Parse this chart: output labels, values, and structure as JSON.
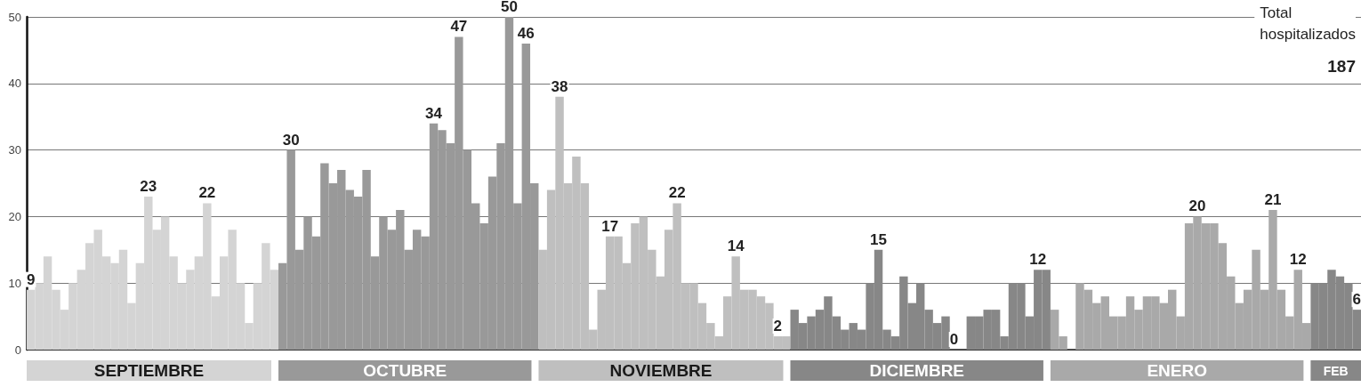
{
  "chart_data": {
    "type": "bar",
    "categories": [
      null,
      null,
      null,
      null,
      null,
      null,
      null,
      null,
      null,
      null,
      null,
      null,
      null,
      null,
      null,
      null,
      null,
      null,
      null,
      null,
      null,
      null,
      null,
      null,
      null,
      null,
      null,
      null,
      null,
      null,
      null,
      null,
      null,
      null,
      null,
      null,
      null,
      null,
      null,
      null,
      null,
      null,
      null,
      null,
      null,
      null,
      null,
      null,
      null,
      null,
      null,
      null,
      null,
      null,
      null,
      null,
      null,
      null,
      null,
      null,
      null,
      null,
      null,
      null,
      null,
      null,
      null,
      null,
      null,
      null,
      null,
      null,
      null,
      null,
      null,
      null,
      null,
      null,
      null,
      null,
      null,
      null,
      null,
      null,
      null,
      null,
      null,
      null,
      null,
      null,
      null,
      null,
      null,
      null,
      null,
      null,
      null,
      null,
      null,
      null,
      null,
      null,
      null,
      null,
      null,
      null,
      null,
      null,
      null,
      null,
      null,
      null,
      null,
      null,
      null,
      null,
      null,
      null,
      null,
      null,
      null,
      null,
      null,
      null,
      null,
      null,
      null,
      null,
      null,
      null,
      null,
      null,
      null,
      null,
      null,
      null,
      null,
      null,
      null,
      null,
      null,
      null,
      null,
      null,
      null,
      null,
      null,
      null,
      null,
      null,
      null,
      null,
      null,
      null,
      null,
      null,
      null,
      null,
      null
    ],
    "ylim": [
      0,
      50
    ],
    "yticks": [
      0,
      10,
      20,
      30,
      40,
      50
    ],
    "grid": "y",
    "legend": false,
    "annotations": [
      "Total\nhospitalizados",
      "187"
    ],
    "series": [
      {
        "name": "SEPTIEMBRE",
        "color": "#d4d4d4",
        "values": [
          9,
          10,
          14,
          9,
          6,
          10,
          12,
          16,
          18,
          14,
          13,
          15,
          7,
          13,
          23,
          18,
          20,
          14,
          10,
          12,
          14,
          22,
          8,
          14,
          18,
          10,
          4,
          10,
          16,
          12,
          null,
          null,
          null,
          null,
          null,
          null,
          null,
          null,
          null,
          null,
          null,
          null,
          null,
          null,
          null,
          null,
          null,
          null,
          null,
          null,
          null,
          null,
          null,
          null,
          null,
          null,
          null,
          null,
          null,
          null,
          null,
          null,
          null,
          null,
          null,
          null,
          null,
          null,
          null,
          null,
          null,
          null,
          null,
          null,
          null,
          null,
          null,
          null,
          null,
          null,
          null,
          null,
          null,
          null,
          null,
          null,
          null,
          null,
          null,
          null,
          null,
          null,
          null,
          null,
          null,
          null,
          null,
          null,
          null,
          null,
          null,
          null,
          null,
          null,
          null,
          null,
          null,
          null,
          null,
          null,
          null,
          null,
          null,
          null,
          null,
          null,
          null,
          null,
          null,
          null,
          null,
          null,
          null,
          null,
          null,
          null,
          null,
          null,
          null,
          null,
          null,
          null,
          null,
          null,
          null,
          null,
          null,
          null,
          null,
          null,
          null,
          null,
          null,
          null,
          null,
          null,
          null,
          null,
          null,
          null,
          null,
          null,
          null,
          null,
          null,
          null,
          null,
          null,
          null
        ],
        "value_labels": [
          "9",
          null,
          null,
          null,
          null,
          null,
          null,
          null,
          null,
          null,
          null,
          null,
          null,
          null,
          "23",
          null,
          null,
          null,
          null,
          null,
          null,
          "22",
          null,
          null,
          null,
          null,
          null,
          null,
          null,
          null,
          null,
          null,
          null,
          null,
          null,
          null,
          null,
          null,
          null,
          null,
          null,
          null,
          null,
          null,
          null,
          null,
          null,
          null,
          null,
          null,
          null,
          null,
          null,
          null,
          null,
          null,
          null,
          null,
          null,
          null,
          null,
          null,
          null,
          null,
          null,
          null,
          null,
          null,
          null,
          null,
          null,
          null,
          null,
          null,
          null,
          null,
          null,
          null,
          null,
          null,
          null,
          null,
          null,
          null,
          null,
          null,
          null,
          null,
          null,
          null,
          null,
          null,
          null,
          null,
          null,
          null,
          null,
          null,
          null,
          null,
          null,
          null,
          null,
          null,
          null,
          null,
          null,
          null,
          null,
          null,
          null,
          null,
          null,
          null,
          null,
          null,
          null,
          null,
          null,
          null,
          null,
          null,
          null,
          null,
          null,
          null,
          null,
          null,
          null,
          null,
          null,
          null,
          null,
          null,
          null,
          null,
          null,
          null,
          null,
          null,
          null,
          null,
          null,
          null,
          null,
          null,
          null,
          null,
          null,
          null,
          null,
          null,
          null,
          null,
          null,
          null,
          null,
          null,
          null
        ]
      },
      {
        "name": "OCTUBRE",
        "color": "#999999",
        "values": [
          null,
          null,
          null,
          null,
          null,
          null,
          null,
          null,
          null,
          null,
          null,
          null,
          null,
          null,
          null,
          null,
          null,
          null,
          null,
          null,
          null,
          null,
          null,
          null,
          null,
          null,
          null,
          null,
          null,
          null,
          13,
          30,
          15,
          20,
          17,
          28,
          25,
          27,
          24,
          23,
          27,
          14,
          20,
          18,
          21,
          15,
          18,
          17,
          34,
          33,
          31,
          47,
          30,
          22,
          19,
          26,
          31,
          50,
          22,
          46,
          25,
          null,
          null,
          null,
          null,
          null,
          null,
          null,
          null,
          null,
          null,
          null,
          null,
          null,
          null,
          null,
          null,
          null,
          null,
          null,
          null,
          null,
          null,
          null,
          null,
          null,
          null,
          null,
          null,
          null,
          null,
          null,
          null,
          null,
          null,
          null,
          null,
          null,
          null,
          null,
          null,
          null,
          null,
          null,
          null,
          null,
          null,
          null,
          null,
          null,
          null,
          null,
          null,
          null,
          null,
          null,
          null,
          null,
          null,
          null,
          null,
          null,
          null,
          null,
          null,
          null,
          null,
          null,
          null,
          null,
          null,
          null,
          null,
          null,
          null,
          null,
          null,
          null,
          null,
          null,
          null,
          null,
          null,
          null,
          null,
          null,
          null,
          null,
          null,
          null,
          null,
          null,
          null,
          null,
          null,
          null,
          null,
          null,
          null
        ],
        "value_labels": [
          null,
          null,
          null,
          null,
          null,
          null,
          null,
          null,
          null,
          null,
          null,
          null,
          null,
          null,
          null,
          null,
          null,
          null,
          null,
          null,
          null,
          null,
          null,
          null,
          null,
          null,
          null,
          null,
          null,
          null,
          null,
          "30",
          null,
          null,
          null,
          null,
          null,
          null,
          null,
          null,
          null,
          null,
          null,
          null,
          null,
          null,
          null,
          null,
          "34",
          null,
          null,
          "47",
          null,
          null,
          null,
          null,
          null,
          "50",
          null,
          "46",
          null,
          null,
          null,
          null,
          null,
          null,
          null,
          null,
          null,
          null,
          null,
          null,
          null,
          null,
          null,
          null,
          null,
          null,
          null,
          null,
          null,
          null,
          null,
          null,
          null,
          null,
          null,
          null,
          null,
          null,
          null,
          null,
          null,
          null,
          null,
          null,
          null,
          null,
          null,
          null,
          null,
          null,
          null,
          null,
          null,
          null,
          null,
          null,
          null,
          null,
          null,
          null,
          null,
          null,
          null,
          null,
          null,
          null,
          null,
          null,
          null,
          null,
          null,
          null,
          null,
          null,
          null,
          null,
          null,
          null,
          null,
          null,
          null,
          null,
          null,
          null,
          null,
          null,
          null,
          null,
          null,
          null,
          null,
          null,
          null,
          null,
          null,
          null,
          null,
          null,
          null,
          null,
          null,
          null,
          null,
          null,
          null,
          null,
          null
        ]
      },
      {
        "name": "NOVIEMBRE",
        "color": "#bfbfbf",
        "values": [
          null,
          null,
          null,
          null,
          null,
          null,
          null,
          null,
          null,
          null,
          null,
          null,
          null,
          null,
          null,
          null,
          null,
          null,
          null,
          null,
          null,
          null,
          null,
          null,
          null,
          null,
          null,
          null,
          null,
          null,
          null,
          null,
          null,
          null,
          null,
          null,
          null,
          null,
          null,
          null,
          null,
          null,
          null,
          null,
          null,
          null,
          null,
          null,
          null,
          null,
          null,
          null,
          null,
          null,
          null,
          null,
          null,
          null,
          null,
          null,
          null,
          15,
          24,
          38,
          25,
          29,
          25,
          3,
          9,
          17,
          17,
          13,
          19,
          20,
          15,
          11,
          18,
          22,
          10,
          10,
          7,
          4,
          2,
          8,
          14,
          9,
          9,
          8,
          7,
          2,
          2,
          null,
          null,
          null,
          null,
          null,
          null,
          null,
          null,
          null,
          null,
          null,
          null,
          null,
          null,
          null,
          null,
          null,
          null,
          null,
          null,
          null,
          null,
          null,
          null,
          null,
          null,
          null,
          null,
          null,
          null,
          null,
          null,
          null,
          null,
          null,
          null,
          null,
          null,
          null,
          null,
          null,
          null,
          null,
          null,
          null,
          null,
          null,
          null,
          null,
          null,
          null,
          null,
          null,
          null,
          null,
          null,
          null,
          null,
          null,
          null,
          null,
          null,
          null,
          null,
          null,
          null,
          null,
          null
        ],
        "value_labels": [
          null,
          null,
          null,
          null,
          null,
          null,
          null,
          null,
          null,
          null,
          null,
          null,
          null,
          null,
          null,
          null,
          null,
          null,
          null,
          null,
          null,
          null,
          null,
          null,
          null,
          null,
          null,
          null,
          null,
          null,
          null,
          null,
          null,
          null,
          null,
          null,
          null,
          null,
          null,
          null,
          null,
          null,
          null,
          null,
          null,
          null,
          null,
          null,
          null,
          null,
          null,
          null,
          null,
          null,
          null,
          null,
          null,
          null,
          null,
          null,
          null,
          null,
          null,
          "38",
          null,
          null,
          null,
          null,
          null,
          "17",
          null,
          null,
          null,
          null,
          null,
          null,
          null,
          "22",
          null,
          null,
          null,
          null,
          null,
          null,
          "14",
          null,
          null,
          null,
          null,
          "2",
          null,
          null,
          null,
          null,
          null,
          null,
          null,
          null,
          null,
          null,
          null,
          null,
          null,
          null,
          null,
          null,
          null,
          null,
          null,
          null,
          null,
          null,
          null,
          null,
          null,
          null,
          null,
          null,
          null,
          null,
          null,
          null,
          null,
          null,
          null,
          null,
          null,
          null,
          null,
          null,
          null,
          null,
          null,
          null,
          null,
          null,
          null,
          null,
          null,
          null,
          null,
          null,
          null,
          null,
          null,
          null,
          null,
          null,
          null,
          null,
          null,
          null,
          null,
          null,
          null,
          null,
          null,
          null,
          null
        ]
      },
      {
        "name": "DICIEMBRE",
        "color": "#878787",
        "values": [
          null,
          null,
          null,
          null,
          null,
          null,
          null,
          null,
          null,
          null,
          null,
          null,
          null,
          null,
          null,
          null,
          null,
          null,
          null,
          null,
          null,
          null,
          null,
          null,
          null,
          null,
          null,
          null,
          null,
          null,
          null,
          null,
          null,
          null,
          null,
          null,
          null,
          null,
          null,
          null,
          null,
          null,
          null,
          null,
          null,
          null,
          null,
          null,
          null,
          null,
          null,
          null,
          null,
          null,
          null,
          null,
          null,
          null,
          null,
          null,
          null,
          null,
          null,
          null,
          null,
          null,
          null,
          null,
          null,
          null,
          null,
          null,
          null,
          null,
          null,
          null,
          null,
          null,
          null,
          null,
          null,
          null,
          null,
          null,
          null,
          null,
          null,
          null,
          null,
          null,
          null,
          6,
          4,
          5,
          6,
          8,
          5,
          3,
          4,
          3,
          10,
          15,
          3,
          2,
          11,
          7,
          10,
          6,
          4,
          5,
          0,
          0,
          5,
          5,
          6,
          6,
          2,
          10,
          10,
          5,
          12,
          12,
          null,
          null,
          null,
          null,
          null,
          null,
          null,
          null,
          null,
          null,
          null,
          null,
          null,
          null,
          null,
          null,
          null,
          null,
          null,
          null,
          null,
          null,
          null,
          null,
          null,
          null,
          null,
          null,
          null,
          null,
          null,
          null,
          null,
          null,
          null,
          null,
          null
        ],
        "value_labels": [
          null,
          null,
          null,
          null,
          null,
          null,
          null,
          null,
          null,
          null,
          null,
          null,
          null,
          null,
          null,
          null,
          null,
          null,
          null,
          null,
          null,
          null,
          null,
          null,
          null,
          null,
          null,
          null,
          null,
          null,
          null,
          null,
          null,
          null,
          null,
          null,
          null,
          null,
          null,
          null,
          null,
          null,
          null,
          null,
          null,
          null,
          null,
          null,
          null,
          null,
          null,
          null,
          null,
          null,
          null,
          null,
          null,
          null,
          null,
          null,
          null,
          null,
          null,
          null,
          null,
          null,
          null,
          null,
          null,
          null,
          null,
          null,
          null,
          null,
          null,
          null,
          null,
          null,
          null,
          null,
          null,
          null,
          null,
          null,
          null,
          null,
          null,
          null,
          null,
          null,
          null,
          null,
          null,
          null,
          null,
          null,
          null,
          null,
          null,
          null,
          null,
          "15",
          null,
          null,
          null,
          null,
          null,
          null,
          null,
          null,
          "0",
          null,
          null,
          null,
          null,
          null,
          null,
          null,
          null,
          null,
          "12",
          null,
          null,
          null,
          null,
          null,
          null,
          null,
          null,
          null,
          null,
          null,
          null,
          null,
          null,
          null,
          null,
          null,
          null,
          null,
          null,
          null,
          null,
          null,
          null,
          null,
          null,
          null,
          null,
          null,
          null,
          null,
          null,
          null,
          null,
          null,
          null,
          null,
          null
        ]
      },
      {
        "name": "ENERO",
        "color": "#a9a9a9",
        "values": [
          null,
          null,
          null,
          null,
          null,
          null,
          null,
          null,
          null,
          null,
          null,
          null,
          null,
          null,
          null,
          null,
          null,
          null,
          null,
          null,
          null,
          null,
          null,
          null,
          null,
          null,
          null,
          null,
          null,
          null,
          null,
          null,
          null,
          null,
          null,
          null,
          null,
          null,
          null,
          null,
          null,
          null,
          null,
          null,
          null,
          null,
          null,
          null,
          null,
          null,
          null,
          null,
          null,
          null,
          null,
          null,
          null,
          null,
          null,
          null,
          null,
          null,
          null,
          null,
          null,
          null,
          null,
          null,
          null,
          null,
          null,
          null,
          null,
          null,
          null,
          null,
          null,
          null,
          null,
          null,
          null,
          null,
          null,
          null,
          null,
          null,
          null,
          null,
          null,
          null,
          null,
          null,
          null,
          null,
          null,
          null,
          null,
          null,
          null,
          null,
          null,
          null,
          null,
          null,
          null,
          null,
          null,
          null,
          null,
          null,
          null,
          null,
          null,
          null,
          null,
          null,
          null,
          null,
          null,
          null,
          null,
          null,
          6,
          2,
          0,
          10,
          9,
          7,
          8,
          5,
          5,
          8,
          6,
          8,
          8,
          7,
          9,
          5,
          19,
          20,
          19,
          19,
          16,
          11,
          7,
          9,
          15,
          9,
          21,
          9,
          5,
          12,
          4,
          null,
          null,
          null,
          null,
          null,
          null
        ],
        "value_labels": [
          null,
          null,
          null,
          null,
          null,
          null,
          null,
          null,
          null,
          null,
          null,
          null,
          null,
          null,
          null,
          null,
          null,
          null,
          null,
          null,
          null,
          null,
          null,
          null,
          null,
          null,
          null,
          null,
          null,
          null,
          null,
          null,
          null,
          null,
          null,
          null,
          null,
          null,
          null,
          null,
          null,
          null,
          null,
          null,
          null,
          null,
          null,
          null,
          null,
          null,
          null,
          null,
          null,
          null,
          null,
          null,
          null,
          null,
          null,
          null,
          null,
          null,
          null,
          null,
          null,
          null,
          null,
          null,
          null,
          null,
          null,
          null,
          null,
          null,
          null,
          null,
          null,
          null,
          null,
          null,
          null,
          null,
          null,
          null,
          null,
          null,
          null,
          null,
          null,
          null,
          null,
          null,
          null,
          null,
          null,
          null,
          null,
          null,
          null,
          null,
          null,
          null,
          null,
          null,
          null,
          null,
          null,
          null,
          null,
          null,
          null,
          null,
          null,
          null,
          null,
          null,
          null,
          null,
          null,
          null,
          null,
          null,
          null,
          null,
          null,
          null,
          null,
          null,
          null,
          null,
          null,
          null,
          null,
          null,
          null,
          null,
          null,
          null,
          null,
          "20",
          null,
          null,
          null,
          null,
          null,
          null,
          null,
          null,
          "21",
          null,
          null,
          "12",
          null,
          null,
          null,
          null,
          null,
          null,
          null
        ]
      },
      {
        "name": "FEB",
        "color": "#878787",
        "values": [
          null,
          null,
          null,
          null,
          null,
          null,
          null,
          null,
          null,
          null,
          null,
          null,
          null,
          null,
          null,
          null,
          null,
          null,
          null,
          null,
          null,
          null,
          null,
          null,
          null,
          null,
          null,
          null,
          null,
          null,
          null,
          null,
          null,
          null,
          null,
          null,
          null,
          null,
          null,
          null,
          null,
          null,
          null,
          null,
          null,
          null,
          null,
          null,
          null,
          null,
          null,
          null,
          null,
          null,
          null,
          null,
          null,
          null,
          null,
          null,
          null,
          null,
          null,
          null,
          null,
          null,
          null,
          null,
          null,
          null,
          null,
          null,
          null,
          null,
          null,
          null,
          null,
          null,
          null,
          null,
          null,
          null,
          null,
          null,
          null,
          null,
          null,
          null,
          null,
          null,
          null,
          null,
          null,
          null,
          null,
          null,
          null,
          null,
          null,
          null,
          null,
          null,
          null,
          null,
          null,
          null,
          null,
          null,
          null,
          null,
          null,
          null,
          null,
          null,
          null,
          null,
          null,
          null,
          null,
          null,
          null,
          null,
          null,
          null,
          null,
          null,
          null,
          null,
          null,
          null,
          null,
          null,
          null,
          null,
          null,
          null,
          null,
          null,
          null,
          null,
          null,
          null,
          null,
          null,
          null,
          null,
          null,
          null,
          null,
          null,
          null,
          null,
          null,
          10,
          10,
          12,
          11,
          10,
          6
        ],
        "value_labels": [
          null,
          null,
          null,
          null,
          null,
          null,
          null,
          null,
          null,
          null,
          null,
          null,
          null,
          null,
          null,
          null,
          null,
          null,
          null,
          null,
          null,
          null,
          null,
          null,
          null,
          null,
          null,
          null,
          null,
          null,
          null,
          null,
          null,
          null,
          null,
          null,
          null,
          null,
          null,
          null,
          null,
          null,
          null,
          null,
          null,
          null,
          null,
          null,
          null,
          null,
          null,
          null,
          null,
          null,
          null,
          null,
          null,
          null,
          null,
          null,
          null,
          null,
          null,
          null,
          null,
          null,
          null,
          null,
          null,
          null,
          null,
          null,
          null,
          null,
          null,
          null,
          null,
          null,
          null,
          null,
          null,
          null,
          null,
          null,
          null,
          null,
          null,
          null,
          null,
          null,
          null,
          null,
          null,
          null,
          null,
          null,
          null,
          null,
          null,
          null,
          null,
          null,
          null,
          null,
          null,
          null,
          null,
          null,
          null,
          null,
          null,
          null,
          null,
          null,
          null,
          null,
          null,
          null,
          null,
          null,
          null,
          null,
          null,
          null,
          null,
          null,
          null,
          null,
          null,
          null,
          null,
          null,
          null,
          null,
          null,
          null,
          null,
          null,
          null,
          null,
          null,
          null,
          null,
          null,
          null,
          null,
          null,
          null,
          null,
          null,
          null,
          null,
          null,
          null,
          null,
          null,
          null,
          null,
          "6"
        ]
      }
    ]
  }
}
